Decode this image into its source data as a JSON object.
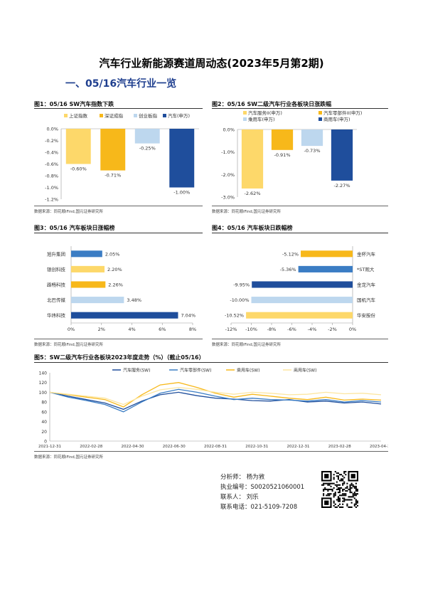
{
  "title": "汽车行业新能源赛道周动态(2023年5月第2期)",
  "section": "一、05/16汽车行业一览",
  "source": "数据来源：同花顺iFind,国元证券研究所",
  "fig1": {
    "title": "图1：05/16 SW汽车指数下跌",
    "chart_data": {
      "type": "bar",
      "categories": [
        "上证指数",
        "深证成指",
        "创业板指",
        "汽车(申万)"
      ],
      "values": [
        -0.6,
        -0.71,
        -0.25,
        -1.0
      ],
      "value_labels": [
        "-0.60%",
        "-0.71%",
        "-0.25%",
        "-1.00%"
      ],
      "ylim": [
        -1.2,
        0.0
      ],
      "yticks": [
        "0.0%",
        "-0.2%",
        "-0.4%",
        "-0.6%",
        "-0.8%",
        "-1.0%",
        "-1.2%"
      ],
      "colors": [
        "#fdd86a",
        "#f7b81a",
        "#bdd7ee",
        "#1f4e9c"
      ]
    }
  },
  "fig2": {
    "title": "图2：05/16 SW二级汽车行业各板块日涨跌幅",
    "chart_data": {
      "type": "bar",
      "categories": [
        "汽车服务II(申万)",
        "汽车零部件II(申万)",
        "乘用车(申万)",
        "商用车(申万)"
      ],
      "values": [
        -2.62,
        -0.91,
        -0.73,
        -2.27
      ],
      "value_labels": [
        "-2.62%",
        "-0.91%",
        "-0.73%",
        "-2.27%"
      ],
      "ylim": [
        -3.0,
        0.0
      ],
      "yticks": [
        "0.0%",
        "-1.0%",
        "-2.0%",
        "-3.0%"
      ],
      "colors": [
        "#fdd86a",
        "#f7b81a",
        "#bdd7ee",
        "#1f4e9c"
      ]
    }
  },
  "fig3": {
    "title": "图3：05/16 汽车板块日涨幅榜",
    "chart_data": {
      "type": "bar",
      "categories": [
        "旭升集团",
        "银创科技",
        "路畅科技",
        "北巴传媒",
        "华纬科技"
      ],
      "values": [
        2.05,
        2.2,
        2.26,
        3.48,
        7.04
      ],
      "value_labels": [
        "2.05%",
        "2.20%",
        "2.26%",
        "3.48%",
        "7.04%"
      ],
      "xlim": [
        0,
        8
      ],
      "xticks": [
        "0%",
        "2%",
        "4%",
        "6%",
        "8%"
      ],
      "colors": [
        "#3b7dc4",
        "#fdd86a",
        "#f7b81a",
        "#bdd7ee",
        "#1f4e9c"
      ]
    }
  },
  "fig4": {
    "title": "图4：05/16 汽车板块日跌幅榜",
    "chart_data": {
      "type": "bar",
      "categories": [
        "金杯汽车",
        "*ST观大",
        "金龙汽车",
        "国机汽车",
        "华安股份"
      ],
      "values": [
        -5.12,
        -5.36,
        -9.95,
        -10.0,
        -10.52
      ],
      "value_labels": [
        "-5.12%",
        "-5.36%",
        "-9.95%",
        "-10.00%",
        "-10.52%"
      ],
      "xlim": [
        -12,
        0
      ],
      "xticks": [
        "-12%",
        "-10%",
        "-8%",
        "-6%",
        "-4%",
        "-2%",
        "0%"
      ],
      "colors": [
        "#f7b81a",
        "#3b7dc4",
        "#1f4e9c",
        "#bdd7ee",
        "#fdd86a"
      ]
    }
  },
  "fig5": {
    "title": "图5：SW二级汽车行业各板块2023年度走势（%）（截止05/16）",
    "chart_data": {
      "type": "line",
      "xticks": [
        "2021-12-31",
        "2022-02-28",
        "2022-04-30",
        "2022-06-30",
        "2022-08-31",
        "2022-10-31",
        "2022-12-31",
        "2023-02-28",
        "2023-04-30"
      ],
      "yticks": [
        "0",
        "20",
        "40",
        "60",
        "80",
        "100",
        "120",
        "140"
      ],
      "ylim": [
        0,
        140
      ],
      "series": [
        {
          "name": "汽车服务(SW)",
          "color": "#1f4e9c",
          "values": [
            100,
            92,
            85,
            78,
            65,
            82,
            95,
            100,
            93,
            88,
            86,
            83,
            82,
            85,
            80,
            82,
            78,
            80,
            76
          ]
        },
        {
          "name": "汽车零部件(SW)",
          "color": "#3b7dc4",
          "values": [
            100,
            90,
            83,
            75,
            60,
            80,
            98,
            106,
            100,
            92,
            85,
            88,
            85,
            84,
            82,
            85,
            80,
            83,
            80
          ]
        },
        {
          "name": "乘用车(SW)",
          "color": "#f7b81a",
          "values": [
            100,
            95,
            90,
            85,
            70,
            95,
            115,
            120,
            110,
            98,
            90,
            96,
            92,
            88,
            85,
            90,
            84,
            86,
            84
          ]
        },
        {
          "name": "商用车(SW)",
          "color": "#fde6a0",
          "values": [
            100,
            96,
            92,
            88,
            75,
            92,
            105,
            110,
            106,
            100,
            96,
            100,
            98,
            95,
            96,
            100,
            97,
            98,
            95
          ]
        }
      ]
    }
  },
  "analyst": {
    "name": "分析师：  杨为敩",
    "license": "执业编号：S0020521060001",
    "contact": "联系人：  刘乐",
    "phone": "联系电话：021-5109-7208"
  }
}
